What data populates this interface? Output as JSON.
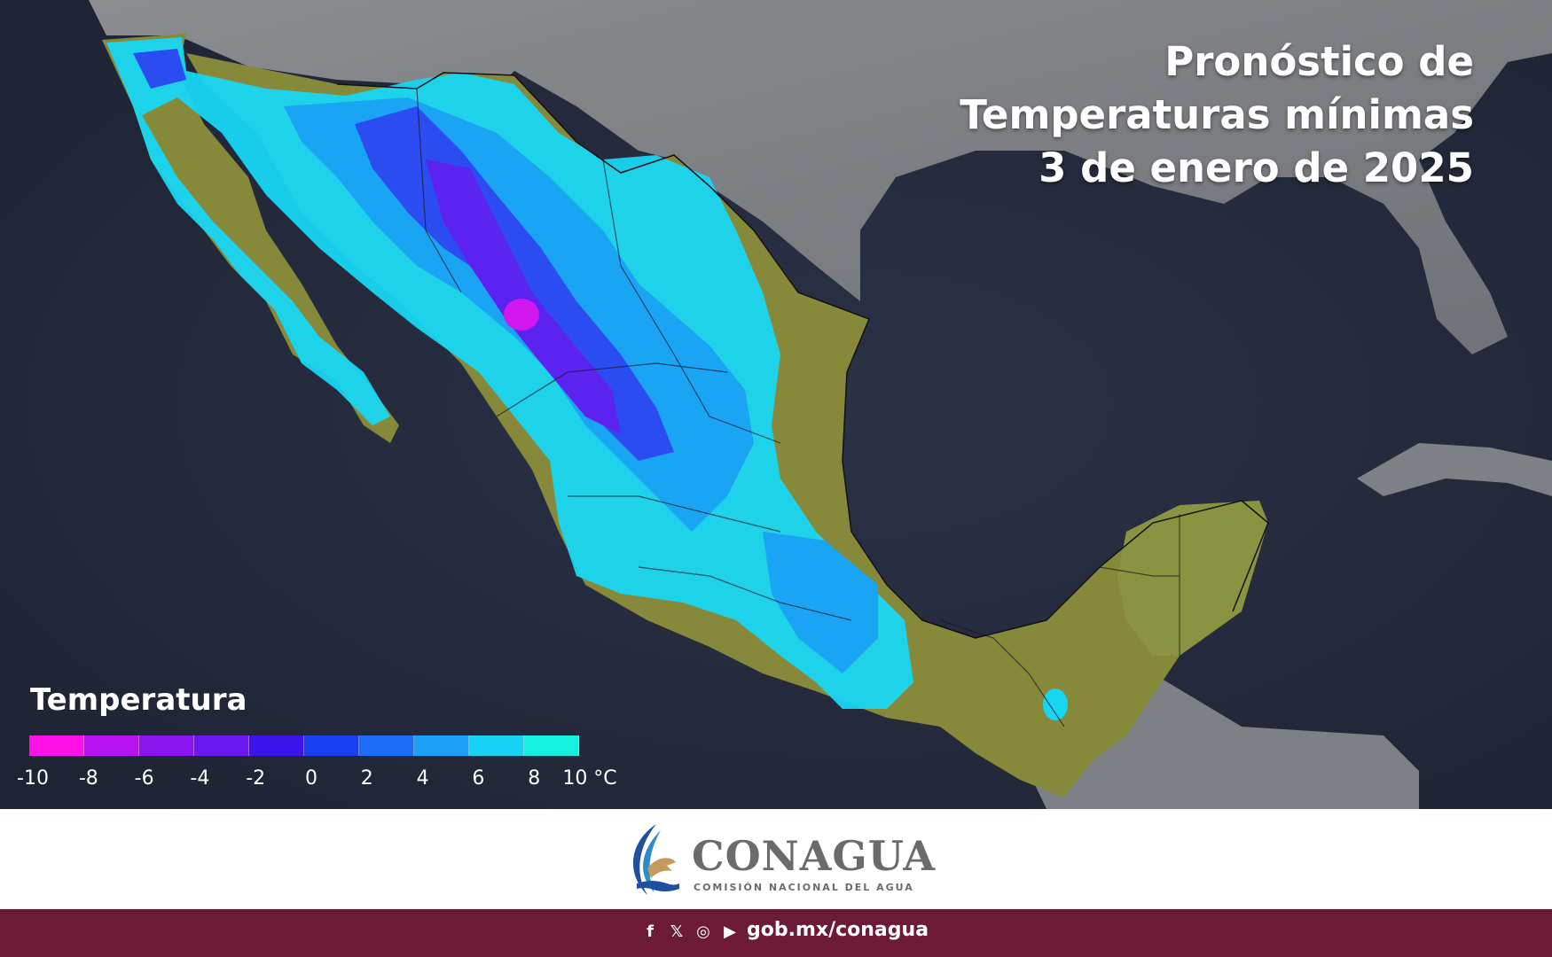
{
  "title_lines": [
    "Pronóstico de",
    "Temperaturas mínimas",
    "3 de enero de 2025"
  ],
  "legend": {
    "title": "Temperatura",
    "unit": "°C",
    "colors": [
      "#ff10e8",
      "#b612f2",
      "#8a14ee",
      "#6a18f0",
      "#3a14ea",
      "#1a3ff0",
      "#1c6cf6",
      "#1aa0f5",
      "#18d2f5",
      "#16f0e0"
    ],
    "ticks": [
      "-10",
      "-8",
      "-6",
      "-4",
      "-2",
      "0",
      "2",
      "4",
      "6",
      "8",
      "10"
    ]
  },
  "logo": {
    "name": "CONAGUA",
    "subtitle": "COMISIÓN NACIONAL DEL AGUA"
  },
  "footer": {
    "icons": [
      "facebook-icon",
      "x-icon",
      "instagram-icon",
      "youtube-icon"
    ],
    "url": "gob.mx/conagua",
    "color": "#6d1a36"
  }
}
